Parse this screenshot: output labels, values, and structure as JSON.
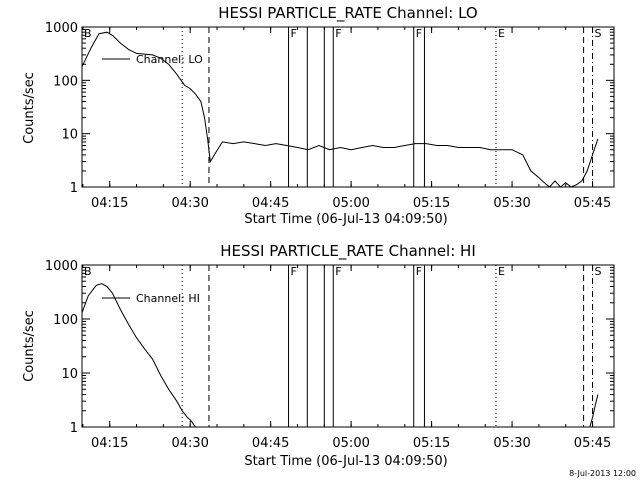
{
  "chart_data": [
    {
      "type": "line",
      "title": "HESSI PARTICLE_RATE Channel: LO",
      "xlabel": "Start Time (06-Jul-13 04:09:50)",
      "ylabel": "Counts/sec",
      "y_scale": "log",
      "xlim": [
        "04:09:50",
        "05:49:00"
      ],
      "ylim": [
        1,
        1000
      ],
      "x_ticks": [
        "04:15",
        "04:30",
        "04:45",
        "05:00",
        "05:15",
        "05:30",
        "05:45"
      ],
      "y_ticks": [
        "1",
        "10",
        "100",
        "1000"
      ],
      "legend": {
        "entries": [
          "Channel: LO"
        ],
        "placement": "top-left"
      },
      "series": [
        {
          "name": "Channel: LO",
          "color": "#000000",
          "x": [
            "04:09:50",
            "04:11:30",
            "04:13:00",
            "04:14:30",
            "04:15:30",
            "04:17:00",
            "04:18:30",
            "04:20:00",
            "04:21:30",
            "04:23:00",
            "04:24:30",
            "04:26:00",
            "04:27:30",
            "04:29:00",
            "04:30:00",
            "04:31:00",
            "04:32:00",
            "04:32:40",
            "04:33:15",
            "04:33:45",
            "04:34:30",
            "04:36:00",
            "04:38:00",
            "04:40:00",
            "04:42:00",
            "04:44:00",
            "04:46:00",
            "04:48:00",
            "04:50:00",
            "04:52:00",
            "04:54:00",
            "04:56:00",
            "04:58:00",
            "05:00:00",
            "05:02:00",
            "05:04:00",
            "05:06:00",
            "05:08:00",
            "05:10:00",
            "05:12:00",
            "05:14:00",
            "05:16:00",
            "05:18:00",
            "05:20:00",
            "05:22:00",
            "05:24:00",
            "05:26:00",
            "05:28:00",
            "05:30:00",
            "05:32:00",
            "05:33:30",
            "05:35:00",
            "05:36:00",
            "05:37:00",
            "05:38:00",
            "05:39:00",
            "05:40:00",
            "05:41:00",
            "05:42:00",
            "05:43:00",
            "05:44:00",
            "05:45:00",
            "05:46:00"
          ],
          "y": [
            180,
            400,
            750,
            800,
            700,
            500,
            380,
            320,
            310,
            300,
            260,
            200,
            130,
            80,
            70,
            55,
            40,
            20,
            8,
            3,
            4,
            7,
            6.5,
            7,
            6.5,
            6,
            6.5,
            6,
            5.5,
            5,
            6,
            5,
            5.5,
            5,
            5.5,
            6,
            5.5,
            5.5,
            6,
            6.5,
            6.5,
            6,
            6,
            5.5,
            5.5,
            5.5,
            5,
            5,
            5,
            4,
            2,
            1.5,
            1.2,
            1,
            1.3,
            1,
            1.2,
            1,
            1.1,
            1.3,
            2,
            4,
            8
          ]
        }
      ],
      "flag_markers": [
        {
          "time": "04:09:50",
          "letter": "B",
          "style": "none"
        },
        {
          "time": "04:28:30",
          "letter": "",
          "style": "dotted"
        },
        {
          "time": "04:33:30",
          "letter": "",
          "style": "dashed"
        },
        {
          "time": "04:48:20",
          "letter": "F",
          "style": "solid"
        },
        {
          "time": "04:51:50",
          "letter": "",
          "style": "solid"
        },
        {
          "time": "04:55:00",
          "letter": "",
          "style": "solid"
        },
        {
          "time": "04:56:40",
          "letter": "F",
          "style": "solid"
        },
        {
          "time": "05:11:40",
          "letter": "F",
          "style": "solid"
        },
        {
          "time": "05:13:40",
          "letter": "",
          "style": "solid"
        },
        {
          "time": "05:27:00",
          "letter": "E",
          "style": "dotted"
        },
        {
          "time": "05:43:20",
          "letter": "",
          "style": "dashed"
        },
        {
          "time": "05:45:00",
          "letter": "S",
          "style": "dashdot"
        }
      ]
    },
    {
      "type": "line",
      "title": "HESSI PARTICLE_RATE Channel: HI",
      "xlabel": "Start Time (06-Jul-13 04:09:50)",
      "ylabel": "Counts/sec",
      "y_scale": "log",
      "xlim": [
        "04:09:50",
        "05:49:00"
      ],
      "ylim": [
        1,
        1000
      ],
      "x_ticks": [
        "04:15",
        "04:30",
        "04:45",
        "05:00",
        "05:15",
        "05:30",
        "05:45"
      ],
      "y_ticks": [
        "1",
        "10",
        "100",
        "1000"
      ],
      "legend": {
        "entries": [
          "Channel: HI"
        ],
        "placement": "top-left"
      },
      "series": [
        {
          "name": "Channel: HI",
          "color": "#000000",
          "x": [
            "04:09:50",
            "04:11:00",
            "04:12:30",
            "04:13:30",
            "04:14:30",
            "04:15:30",
            "04:17:00",
            "04:18:30",
            "04:20:00",
            "04:21:30",
            "04:23:00",
            "04:24:30",
            "04:26:00",
            "04:27:30",
            "04:28:30",
            "04:29:30",
            "04:30:10",
            "04:30:40",
            "04:31:00"
          ],
          "y": [
            130,
            270,
            420,
            450,
            400,
            300,
            150,
            80,
            45,
            28,
            18,
            9,
            5,
            3,
            2,
            1.5,
            1.3,
            1.1,
            1
          ],
          "tail_x": [
            "05:44:30",
            "05:45:00",
            "05:45:30",
            "05:46:00"
          ],
          "tail_y": [
            1,
            1.5,
            2.5,
            4
          ]
        }
      ],
      "flag_markers": [
        {
          "time": "04:09:50",
          "letter": "B",
          "style": "none"
        },
        {
          "time": "04:28:30",
          "letter": "",
          "style": "dotted"
        },
        {
          "time": "04:33:30",
          "letter": "",
          "style": "dashed"
        },
        {
          "time": "04:48:20",
          "letter": "F",
          "style": "solid"
        },
        {
          "time": "04:51:50",
          "letter": "",
          "style": "solid"
        },
        {
          "time": "04:55:00",
          "letter": "",
          "style": "solid"
        },
        {
          "time": "04:56:40",
          "letter": "F",
          "style": "solid"
        },
        {
          "time": "05:11:40",
          "letter": "F",
          "style": "solid"
        },
        {
          "time": "05:13:40",
          "letter": "",
          "style": "solid"
        },
        {
          "time": "05:27:00",
          "letter": "E",
          "style": "dotted"
        },
        {
          "time": "05:43:20",
          "letter": "",
          "style": "dashed"
        },
        {
          "time": "05:45:00",
          "letter": "S",
          "style": "dashdot"
        }
      ]
    }
  ],
  "timestamp": "8-Jul-2013 12:00"
}
